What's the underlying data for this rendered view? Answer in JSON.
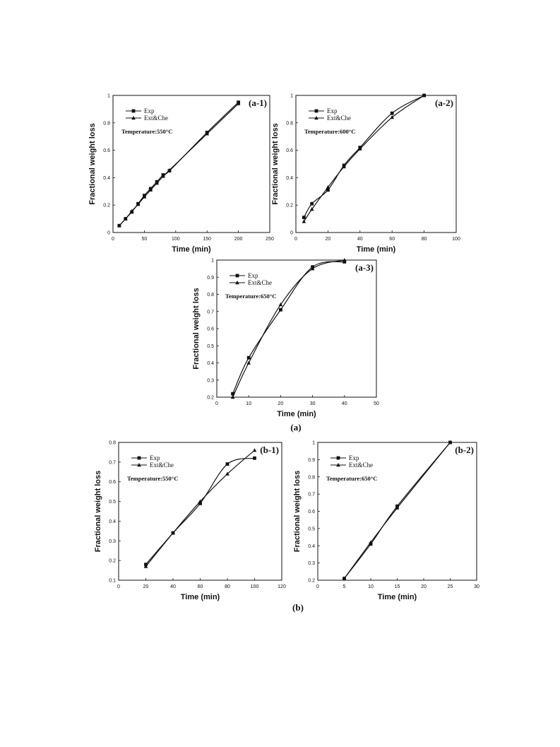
{
  "group_labels": [
    "(a)",
    "(b)"
  ],
  "chart_data": [
    {
      "type": "line",
      "panel_label": "(a-1)",
      "annotation": "Temperature:550°C",
      "legend": [
        "Exp",
        "Ext&Che"
      ],
      "xlabel": "Time (min)",
      "ylabel": "Fractional weight loss",
      "xlim": [
        0,
        250
      ],
      "ylim": [
        0,
        1
      ],
      "xticks": [
        0,
        50,
        100,
        150,
        200,
        250
      ],
      "yticks": [
        0,
        0.2,
        0.4,
        0.6,
        0.8,
        1
      ],
      "series": [
        {
          "name": "Exp",
          "marker": "square",
          "x": [
            10,
            20,
            30,
            40,
            50,
            60,
            70,
            80,
            90,
            150,
            200
          ],
          "y": [
            0.05,
            0.1,
            0.15,
            0.21,
            0.27,
            0.32,
            0.37,
            0.42,
            0.45,
            0.73,
            0.95
          ]
        },
        {
          "name": "Ext&Che",
          "marker": "triangle",
          "x": [
            10,
            20,
            30,
            40,
            50,
            60,
            70,
            80,
            90,
            150,
            200
          ],
          "y": [
            0.05,
            0.1,
            0.155,
            0.205,
            0.26,
            0.31,
            0.36,
            0.41,
            0.455,
            0.72,
            0.94
          ]
        }
      ]
    },
    {
      "type": "line",
      "panel_label": "(a-2)",
      "annotation": "Temperature:600°C",
      "legend": [
        "Exp",
        "Ext&Che"
      ],
      "xlabel": "Time (min)",
      "ylabel": "Fractional weight loss",
      "xlim": [
        0,
        100
      ],
      "ylim": [
        0,
        1
      ],
      "xticks": [
        0,
        20,
        40,
        60,
        80,
        100
      ],
      "yticks": [
        0,
        0.2,
        0.4,
        0.6,
        0.8,
        1
      ],
      "series": [
        {
          "name": "Exp",
          "marker": "square",
          "x": [
            5,
            10,
            20,
            30,
            40,
            60,
            80
          ],
          "y": [
            0.11,
            0.21,
            0.31,
            0.49,
            0.62,
            0.87,
            1.0
          ]
        },
        {
          "name": "Ext&Che",
          "marker": "triangle",
          "x": [
            5,
            10,
            20,
            30,
            40,
            60,
            80
          ],
          "y": [
            0.08,
            0.17,
            0.33,
            0.48,
            0.61,
            0.84,
            1.0
          ]
        }
      ]
    },
    {
      "type": "line",
      "panel_label": "(a-3)",
      "annotation": "Temperature:650°C",
      "legend": [
        "Exp",
        "Ext&Che"
      ],
      "xlabel": "Time (min)",
      "ylabel": "Fractional weight loss",
      "xlim": [
        0,
        50
      ],
      "ylim": [
        0.2,
        1
      ],
      "xticks": [
        0,
        10,
        20,
        30,
        40,
        50
      ],
      "yticks": [
        0.2,
        0.3,
        0.4,
        0.5,
        0.6,
        0.7,
        0.8,
        0.9,
        1
      ],
      "series": [
        {
          "name": "Exp",
          "marker": "square",
          "x": [
            5,
            10,
            20,
            30,
            40
          ],
          "y": [
            0.22,
            0.43,
            0.71,
            0.96,
            0.99
          ]
        },
        {
          "name": "Ext&Che",
          "marker": "triangle",
          "x": [
            5,
            10,
            20,
            30,
            40
          ],
          "y": [
            0.2,
            0.4,
            0.74,
            0.95,
            1.0
          ]
        }
      ]
    },
    {
      "type": "line",
      "panel_label": "(b-1)",
      "annotation": "Temperature:550°C",
      "legend": [
        "Exp",
        "Ext&Che"
      ],
      "xlabel": "Time (min)",
      "ylabel": "Fractional weight loss",
      "xlim": [
        0,
        120
      ],
      "ylim": [
        0.1,
        0.8
      ],
      "xticks": [
        0,
        20,
        40,
        60,
        80,
        100,
        120
      ],
      "yticks": [
        0.1,
        0.2,
        0.3,
        0.4,
        0.5,
        0.6,
        0.7,
        0.8
      ],
      "series": [
        {
          "name": "Exp",
          "marker": "square",
          "x": [
            20,
            40,
            60,
            80,
            100
          ],
          "y": [
            0.18,
            0.34,
            0.49,
            0.69,
            0.72
          ]
        },
        {
          "name": "Ext&Che",
          "marker": "triangle",
          "x": [
            20,
            40,
            60,
            80,
            100
          ],
          "y": [
            0.17,
            0.34,
            0.5,
            0.64,
            0.76
          ]
        }
      ]
    },
    {
      "type": "line",
      "panel_label": "(b-2)",
      "annotation": "Temperature:650°C",
      "legend": [
        "Exp",
        "Ext&Che"
      ],
      "xlabel": "Time (min)",
      "ylabel": "Fractional weight loss",
      "xlim": [
        0,
        30
      ],
      "ylim": [
        0.2,
        1
      ],
      "xticks": [
        0,
        5,
        10,
        15,
        20,
        25,
        30
      ],
      "yticks": [
        0.2,
        0.3,
        0.4,
        0.5,
        0.6,
        0.7,
        0.8,
        0.9,
        1
      ],
      "series": [
        {
          "name": "Exp",
          "marker": "square",
          "x": [
            5,
            10,
            15,
            25
          ],
          "y": [
            0.21,
            0.41,
            0.63,
            1.0
          ]
        },
        {
          "name": "Ext&Che",
          "marker": "triangle",
          "x": [
            5,
            10,
            15,
            25
          ],
          "y": [
            0.21,
            0.42,
            0.62,
            1.0
          ]
        }
      ]
    }
  ]
}
